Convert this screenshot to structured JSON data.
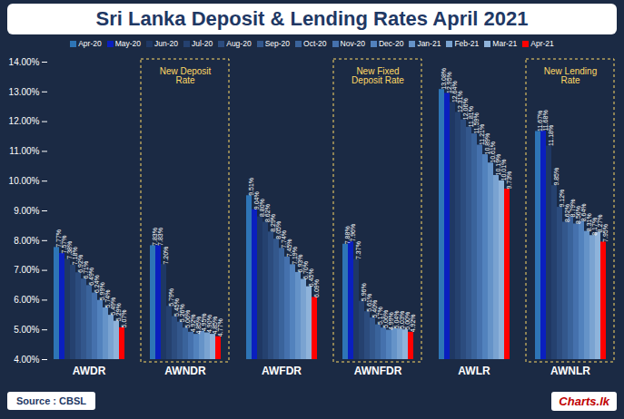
{
  "chart_data": {
    "type": "bar",
    "title": "Sri Lanka Deposit & Lending Rates April 2021",
    "source": "Source : CBSL",
    "logo": "Charts.lk",
    "categories": [
      "AWDR",
      "AWNDR",
      "AWFDR",
      "AWNFDR",
      "AWLR",
      "AWNLR"
    ],
    "ylim": [
      4,
      14
    ],
    "yticks": [
      {
        "value": 4,
        "label": "4.00%"
      },
      {
        "value": 5,
        "label": "5.00%"
      },
      {
        "value": 6,
        "label": "6.00%"
      },
      {
        "value": 7,
        "label": "7.00%"
      },
      {
        "value": 8,
        "label": "8.00%"
      },
      {
        "value": 9,
        "label": "9.00%"
      },
      {
        "value": 10,
        "label": "10.00%"
      },
      {
        "value": 11,
        "label": "11.00%"
      },
      {
        "value": 12,
        "label": "12.00%"
      },
      {
        "value": 13,
        "label": "13.00%"
      },
      {
        "value": 14,
        "label": "14.00%"
      }
    ],
    "grid": false,
    "legend": "top",
    "data_labels": true,
    "annotations": [
      {
        "category": "AWNDR",
        "text": "New Deposit Rate"
      },
      {
        "category": "AWNFDR",
        "text": "New Fixed Deposit Rate"
      },
      {
        "category": "AWNLR",
        "text": "New Lending Rate"
      }
    ],
    "series": [
      {
        "name": "Apr-20",
        "color": "#2e75b6",
        "values": [
          7.77,
          7.83,
          9.51,
          7.88,
          13.08,
          11.67
        ],
        "value_labels": [
          "7.77%",
          "7.83%",
          "9.51%",
          "7.88%",
          "13.08%",
          "11.67%"
        ]
      },
      {
        "name": "May-20",
        "color": "#0a1fbf",
        "values": [
          7.57,
          7.83,
          9.04,
          7.96,
          12.95,
          11.68
        ],
        "value_labels": [
          "7.57%",
          "7.83%",
          "9.04%",
          "7.96%",
          "12.95%",
          "11.68%"
        ]
      },
      {
        "name": "Jun-20",
        "color": "#1f3864",
        "values": [
          7.38,
          7.2,
          8.8,
          7.37,
          12.64,
          11.18
        ],
        "value_labels": [
          "7.38%",
          "7.20%",
          "8.80%",
          "7.37%",
          "12.64%",
          "11.18%"
        ]
      },
      {
        "name": "Jul-20",
        "color": "#25416f",
        "values": [
          7.18,
          5.79,
          8.62,
          5.96,
          12.31,
          9.85
        ],
        "value_labels": [
          "7.18%",
          "5.79%",
          "8.62%",
          "5.96%",
          "12.31%",
          "9.85%"
        ]
      },
      {
        "name": "Aug-20",
        "color": "#2c4c7e",
        "values": [
          6.92,
          5.45,
          8.29,
          5.61,
          12.06,
          9.12
        ],
        "value_labels": [
          "6.92%",
          "5.45%",
          "8.29%",
          "5.61%",
          "12.06%",
          "9.12%"
        ]
      },
      {
        "name": "Sep-20",
        "color": "#33578c",
        "values": [
          6.71,
          5.26,
          8.05,
          5.4,
          11.81,
          8.62
        ],
        "value_labels": [
          "6.71%",
          "5.26%",
          "8.05%",
          "5.40%",
          "11.81%",
          "8.62%"
        ]
      },
      {
        "name": "Oct-20",
        "color": "#3a639b",
        "values": [
          6.49,
          5.06,
          7.74,
          5.17,
          11.59,
          8.79
        ],
        "value_labels": [
          "6.49%",
          "5.06%",
          "7.74%",
          "5.17%",
          "11.59%",
          "8.79%"
        ]
      },
      {
        "name": "Nov-20",
        "color": "#4571ad",
        "values": [
          6.24,
          4.92,
          7.45,
          5.06,
          11.21,
          8.56
        ],
        "value_labels": [
          "6.24%",
          "4.92%",
          "7.45%",
          "5.06%",
          "11.21%",
          "8.56%"
        ]
      },
      {
        "name": "Dec-20",
        "color": "#5282bd",
        "values": [
          5.99,
          4.85,
          7.19,
          4.99,
          10.89,
          8.64
        ],
        "value_labels": [
          "5.99%",
          "4.85%",
          "7.19%",
          "4.99%",
          "10.89%",
          "8.64%"
        ]
      },
      {
        "name": "Jan-21",
        "color": "#6593c8",
        "values": [
          5.74,
          4.95,
          6.93,
          5.04,
          10.61,
          8.31
        ],
        "value_labels": [
          "5.74%",
          "4.95%",
          "6.93%",
          "5.04%",
          "10.61%",
          "8.31%"
        ]
      },
      {
        "name": "Feb-21",
        "color": "#7aa3d1",
        "values": [
          5.49,
          4.9,
          6.7,
          5.03,
          10.19,
          8.17
        ],
        "value_labels": [
          "5.49%",
          "4.90%",
          "6.70%",
          "5.03%",
          "10.19%",
          "8.17%"
        ]
      },
      {
        "name": "Mar-21",
        "color": "#8fb3da",
        "values": [
          5.29,
          4.85,
          6.45,
          5.0,
          10.01,
          8.27
        ],
        "value_labels": [
          "5.29%",
          "4.85%",
          "6.45%",
          "5.00%",
          "10.01%",
          "8.27%"
        ]
      },
      {
        "name": "Apr-21",
        "color": "#ff0000",
        "values": [
          5.07,
          4.77,
          6.09,
          4.92,
          9.73,
          7.95
        ],
        "value_labels": [
          "5.07%",
          "4.77%",
          "6.09%",
          "4.92%",
          "9.73%",
          "7.95%"
        ]
      }
    ]
  }
}
